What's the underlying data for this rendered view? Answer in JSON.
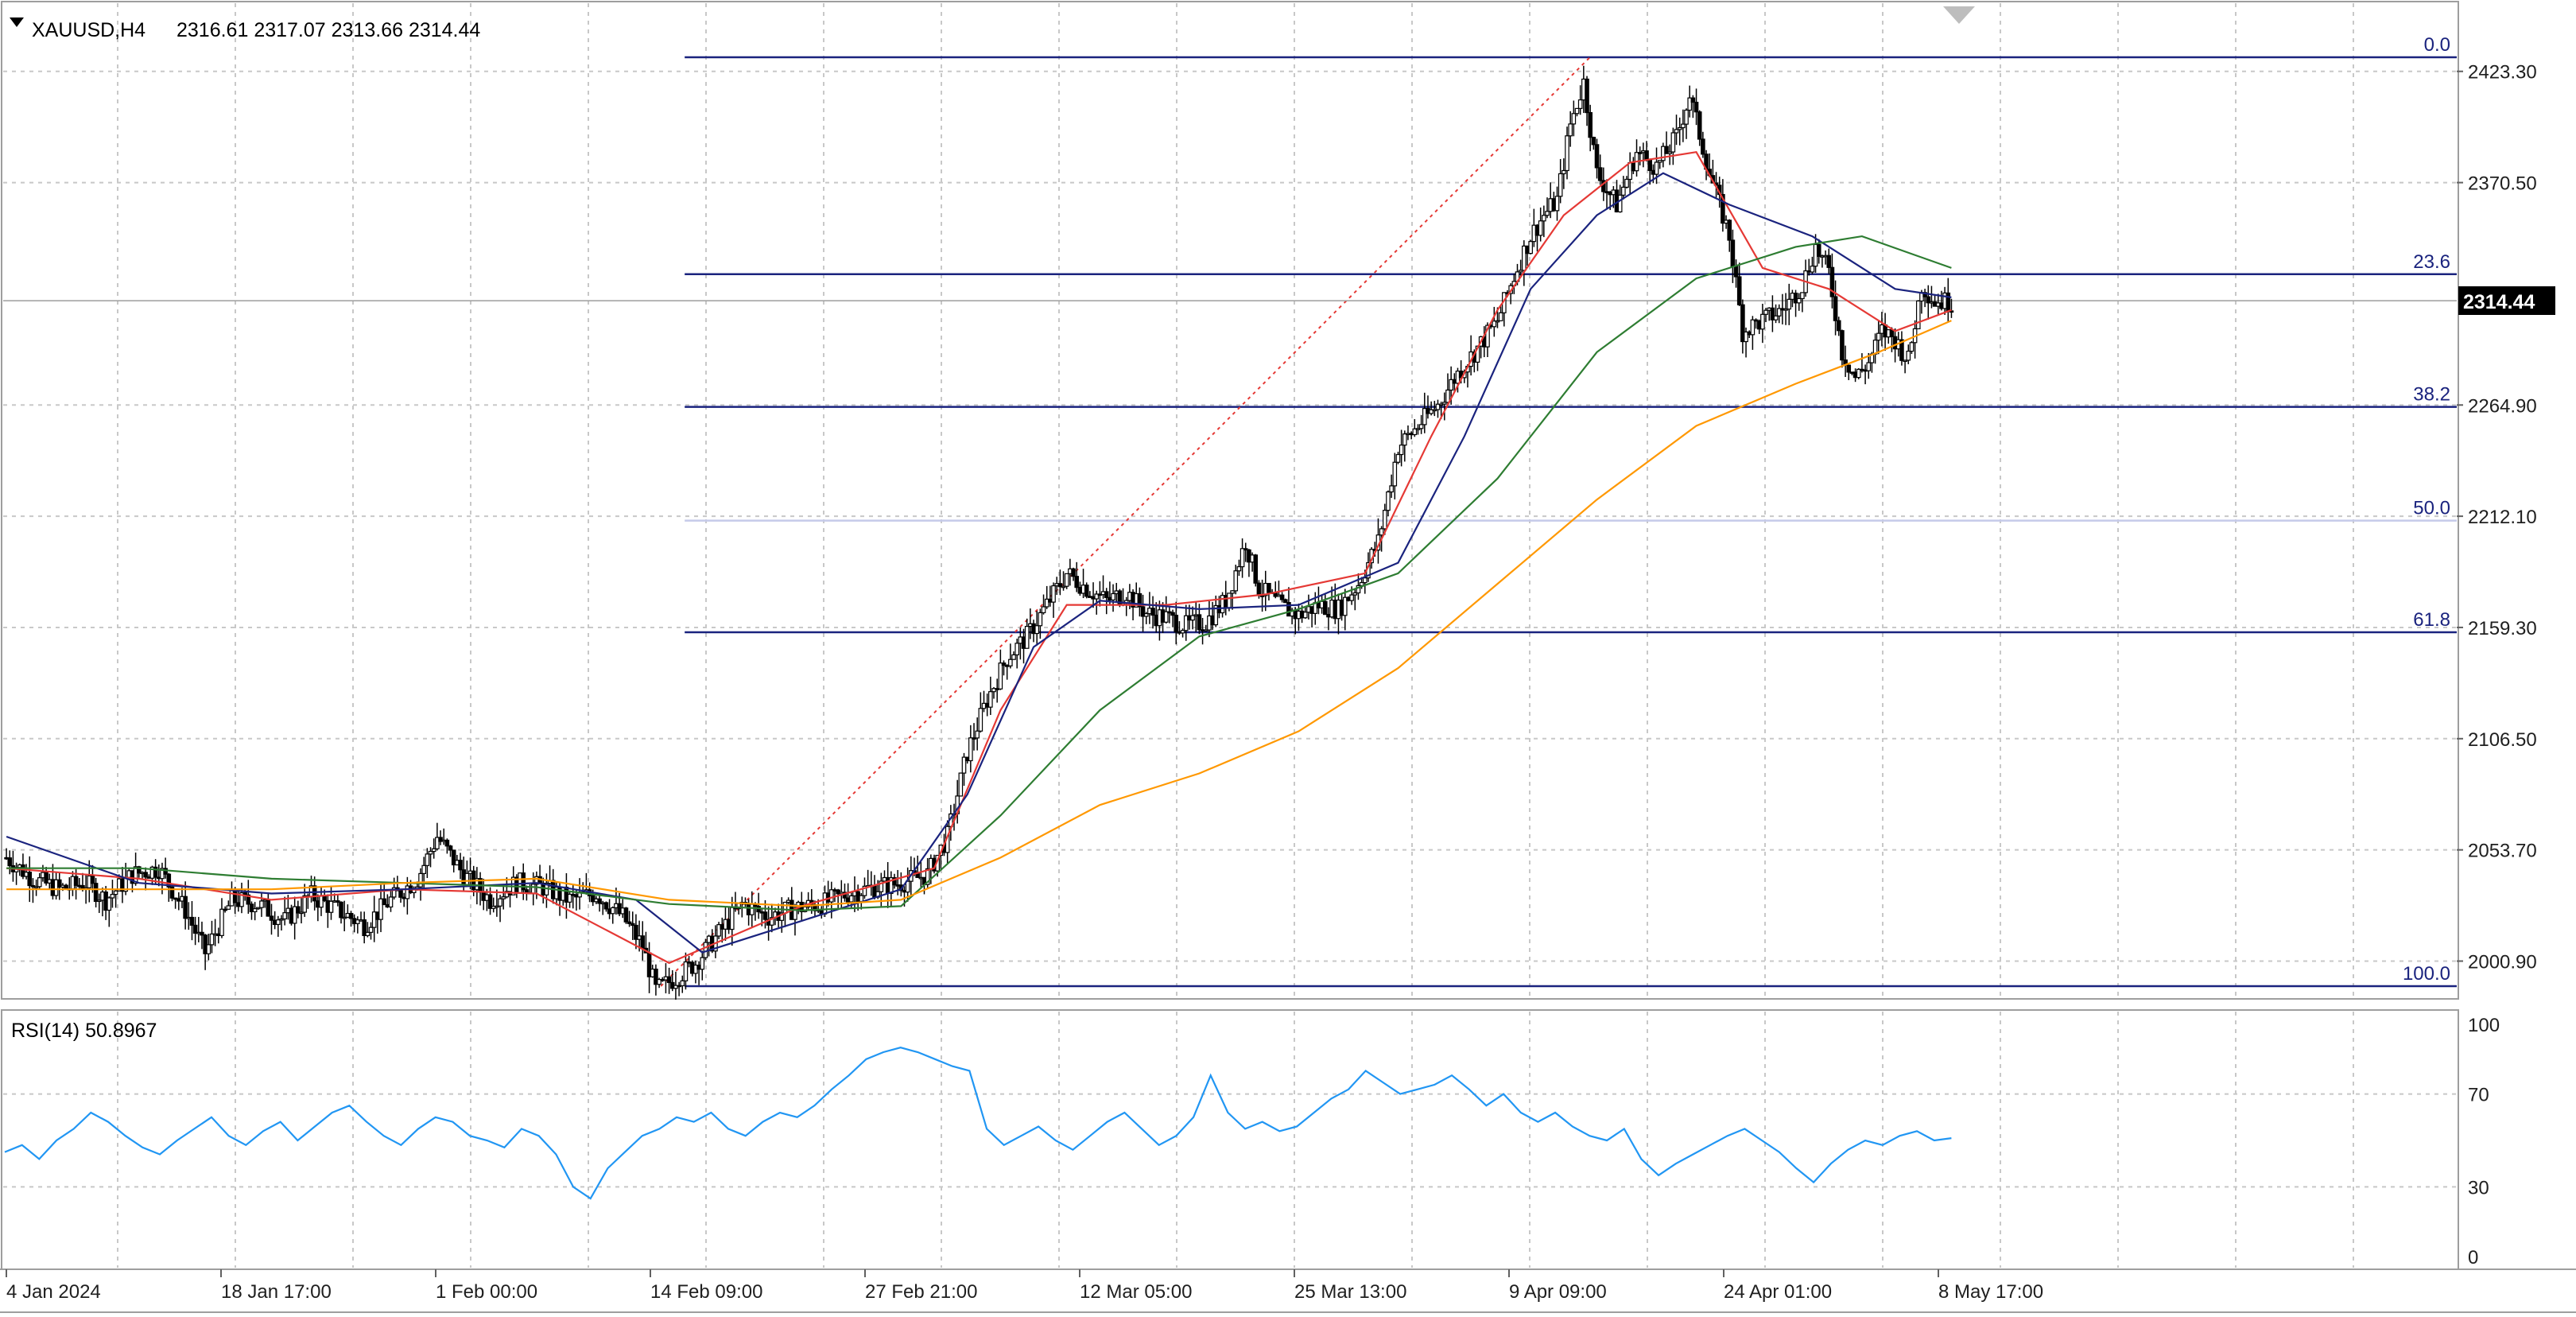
{
  "header": {
    "symbol": "XAUUSD,H4",
    "ohlc": "2316.61 2317.07 2313.66 2314.44"
  },
  "current_price": "2314.44",
  "rsi_header": "RSI(14) 50.8967",
  "colors": {
    "candle": "#000000",
    "ma_fast": "#e53935",
    "ma_mid": "#1a237e",
    "ma_slow": "#2e7d32",
    "ma_long": "#ff9800",
    "fib_line": "#1a237e",
    "fib_line_light": "#c5cae9",
    "trend_line": "#e53935",
    "rsi_line": "#2196f3",
    "grid": "#c8c8c8",
    "price_tag_bg": "#000000"
  },
  "chart_data": [
    {
      "type": "candlestick",
      "title": "XAUUSD,H4",
      "y_ticks": [
        "2423.30",
        "2370.50",
        "2264.90",
        "2212.10",
        "2159.30",
        "2106.50",
        "2053.70",
        "2000.90"
      ],
      "ylim": [
        1975,
        2440
      ],
      "x_ticks": [
        "4 Jan 2024",
        "18 Jan 17:00",
        "1 Feb 00:00",
        "14 Feb 09:00",
        "27 Feb 21:00",
        "12 Mar 05:00",
        "25 Mar 13:00",
        "9 Apr 09:00",
        "24 Apr 01:00",
        "8 May 17:00"
      ],
      "grid": true,
      "price_path": [
        [
          0,
          2050
        ],
        [
          8,
          2040
        ],
        [
          16,
          2035
        ],
        [
          24,
          2038
        ],
        [
          30,
          2030
        ],
        [
          38,
          2042
        ],
        [
          46,
          2045
        ],
        [
          54,
          2025
        ],
        [
          60,
          2005
        ],
        [
          68,
          2030
        ],
        [
          76,
          2028
        ],
        [
          84,
          2020
        ],
        [
          92,
          2032
        ],
        [
          100,
          2025
        ],
        [
          108,
          2018
        ],
        [
          116,
          2030
        ],
        [
          124,
          2040
        ],
        [
          130,
          2060
        ],
        [
          138,
          2042
        ],
        [
          146,
          2030
        ],
        [
          154,
          2038
        ],
        [
          162,
          2036
        ],
        [
          170,
          2030
        ],
        [
          178,
          2033
        ],
        [
          186,
          2022
        ],
        [
          192,
          2008
        ],
        [
          196,
          1987
        ],
        [
          202,
          1993
        ],
        [
          208,
          2000
        ],
        [
          214,
          2012
        ],
        [
          222,
          2028
        ],
        [
          230,
          2022
        ],
        [
          238,
          2026
        ],
        [
          246,
          2028
        ],
        [
          254,
          2033
        ],
        [
          262,
          2036
        ],
        [
          270,
          2038
        ],
        [
          278,
          2042
        ],
        [
          284,
          2060
        ],
        [
          290,
          2100
        ],
        [
          296,
          2125
        ],
        [
          302,
          2145
        ],
        [
          308,
          2155
        ],
        [
          314,
          2170
        ],
        [
          320,
          2185
        ],
        [
          326,
          2178
        ],
        [
          332,
          2172
        ],
        [
          338,
          2176
        ],
        [
          344,
          2166
        ],
        [
          350,
          2164
        ],
        [
          356,
          2160
        ],
        [
          362,
          2162
        ],
        [
          368,
          2172
        ],
        [
          374,
          2200
        ],
        [
          378,
          2178
        ],
        [
          384,
          2170
        ],
        [
          390,
          2165
        ],
        [
          396,
          2170
        ],
        [
          402,
          2168
        ],
        [
          408,
          2180
        ],
        [
          414,
          2200
        ],
        [
          420,
          2245
        ],
        [
          426,
          2255
        ],
        [
          432,
          2265
        ],
        [
          438,
          2280
        ],
        [
          444,
          2292
        ],
        [
          450,
          2305
        ],
        [
          456,
          2330
        ],
        [
          460,
          2345
        ],
        [
          464,
          2355
        ],
        [
          468,
          2362
        ],
        [
          472,
          2398
        ],
        [
          476,
          2418
        ],
        [
          480,
          2375
        ],
        [
          486,
          2360
        ],
        [
          492,
          2385
        ],
        [
          498,
          2378
        ],
        [
          504,
          2392
        ],
        [
          508,
          2412
        ],
        [
          514,
          2375
        ],
        [
          520,
          2345
        ],
        [
          524,
          2300
        ],
        [
          530,
          2305
        ],
        [
          536,
          2310
        ],
        [
          542,
          2322
        ],
        [
          546,
          2340
        ],
        [
          550,
          2328
        ],
        [
          554,
          2290
        ],
        [
          558,
          2278
        ],
        [
          562,
          2285
        ],
        [
          566,
          2300
        ],
        [
          570,
          2296
        ],
        [
          574,
          2286
        ],
        [
          578,
          2322
        ],
        [
          582,
          2314
        ],
        [
          587,
          2314
        ]
      ],
      "fibonacci": {
        "levels": [
          {
            "label": "0.0",
            "price": 2430
          },
          {
            "label": "23.6",
            "price": 2327
          },
          {
            "label": "38.2",
            "price": 2264
          },
          {
            "label": "50.0",
            "price": 2210
          },
          {
            "label": "61.8",
            "price": 2157
          },
          {
            "label": "100.0",
            "price": 1989
          }
        ],
        "start_index": 198,
        "end_index": 740
      },
      "moving_averages": [
        {
          "color": "#e53935",
          "points": [
            [
              0,
              2045
            ],
            [
              40,
              2040
            ],
            [
              80,
              2030
            ],
            [
              120,
              2035
            ],
            [
              160,
              2033
            ],
            [
              200,
              2000
            ],
            [
              240,
              2027
            ],
            [
              280,
              2045
            ],
            [
              300,
              2120
            ],
            [
              320,
              2170
            ],
            [
              350,
              2170
            ],
            [
              380,
              2175
            ],
            [
              410,
              2185
            ],
            [
              430,
              2250
            ],
            [
              450,
              2310
            ],
            [
              470,
              2355
            ],
            [
              490,
              2380
            ],
            [
              510,
              2385
            ],
            [
              530,
              2330
            ],
            [
              550,
              2320
            ],
            [
              570,
              2300
            ],
            [
              587,
              2310
            ]
          ]
        },
        {
          "color": "#1a237e",
          "points": [
            [
              0,
              2060
            ],
            [
              40,
              2038
            ],
            [
              80,
              2033
            ],
            [
              120,
              2035
            ],
            [
              160,
              2038
            ],
            [
              190,
              2030
            ],
            [
              210,
              2005
            ],
            [
              240,
              2020
            ],
            [
              270,
              2035
            ],
            [
              290,
              2080
            ],
            [
              310,
              2150
            ],
            [
              330,
              2172
            ],
            [
              360,
              2168
            ],
            [
              390,
              2170
            ],
            [
              420,
              2190
            ],
            [
              440,
              2250
            ],
            [
              460,
              2320
            ],
            [
              480,
              2355
            ],
            [
              500,
              2375
            ],
            [
              520,
              2360
            ],
            [
              545,
              2345
            ],
            [
              570,
              2320
            ],
            [
              587,
              2316
            ]
          ]
        },
        {
          "color": "#2e7d32",
          "points": [
            [
              0,
              2045
            ],
            [
              40,
              2045
            ],
            [
              80,
              2040
            ],
            [
              120,
              2038
            ],
            [
              160,
              2036
            ],
            [
              200,
              2028
            ],
            [
              240,
              2025
            ],
            [
              270,
              2027
            ],
            [
              300,
              2070
            ],
            [
              330,
              2120
            ],
            [
              360,
              2155
            ],
            [
              390,
              2168
            ],
            [
              420,
              2185
            ],
            [
              450,
              2230
            ],
            [
              480,
              2290
            ],
            [
              510,
              2325
            ],
            [
              540,
              2340
            ],
            [
              560,
              2345
            ],
            [
              587,
              2330
            ]
          ]
        },
        {
          "color": "#ff9800",
          "points": [
            [
              0,
              2035
            ],
            [
              40,
              2035
            ],
            [
              80,
              2035
            ],
            [
              120,
              2038
            ],
            [
              160,
              2040
            ],
            [
              200,
              2030
            ],
            [
              240,
              2027
            ],
            [
              270,
              2030
            ],
            [
              300,
              2050
            ],
            [
              330,
              2075
            ],
            [
              360,
              2090
            ],
            [
              390,
              2110
            ],
            [
              420,
              2140
            ],
            [
              450,
              2180
            ],
            [
              480,
              2220
            ],
            [
              510,
              2255
            ],
            [
              540,
              2275
            ],
            [
              565,
              2290
            ],
            [
              587,
              2305
            ]
          ]
        }
      ]
    },
    {
      "type": "line",
      "title": "RSI(14) 50.8967",
      "y_ticks": [
        "100",
        "70",
        "30",
        "0"
      ],
      "ylim": [
        0,
        100
      ],
      "x_ticks": [
        "4 Jan 2024",
        "18 Jan 17:00",
        "1 Feb 00:00",
        "14 Feb 09:00",
        "27 Feb 21:00",
        "12 Mar 05:00",
        "25 Mar 13:00",
        "9 Apr 09:00",
        "24 Apr 01:00",
        "8 May 17:00"
      ],
      "values": [
        45,
        48,
        42,
        50,
        55,
        62,
        58,
        52,
        47,
        44,
        50,
        55,
        60,
        52,
        48,
        54,
        58,
        50,
        56,
        62,
        65,
        58,
        52,
        48,
        55,
        60,
        58,
        52,
        50,
        47,
        55,
        52,
        44,
        30,
        25,
        38,
        45,
        52,
        55,
        60,
        58,
        62,
        55,
        52,
        58,
        62,
        60,
        65,
        72,
        78,
        85,
        88,
        90,
        88,
        85,
        82,
        80,
        55,
        48,
        52,
        56,
        50,
        46,
        52,
        58,
        62,
        55,
        48,
        52,
        60,
        78,
        62,
        55,
        58,
        54,
        56,
        62,
        68,
        72,
        80,
        75,
        70,
        72,
        74,
        78,
        72,
        65,
        70,
        62,
        58,
        62,
        56,
        52,
        50,
        55,
        42,
        35,
        40,
        44,
        48,
        52,
        55,
        50,
        45,
        38,
        32,
        40,
        46,
        50,
        48,
        52,
        54,
        50,
        51
      ]
    }
  ]
}
